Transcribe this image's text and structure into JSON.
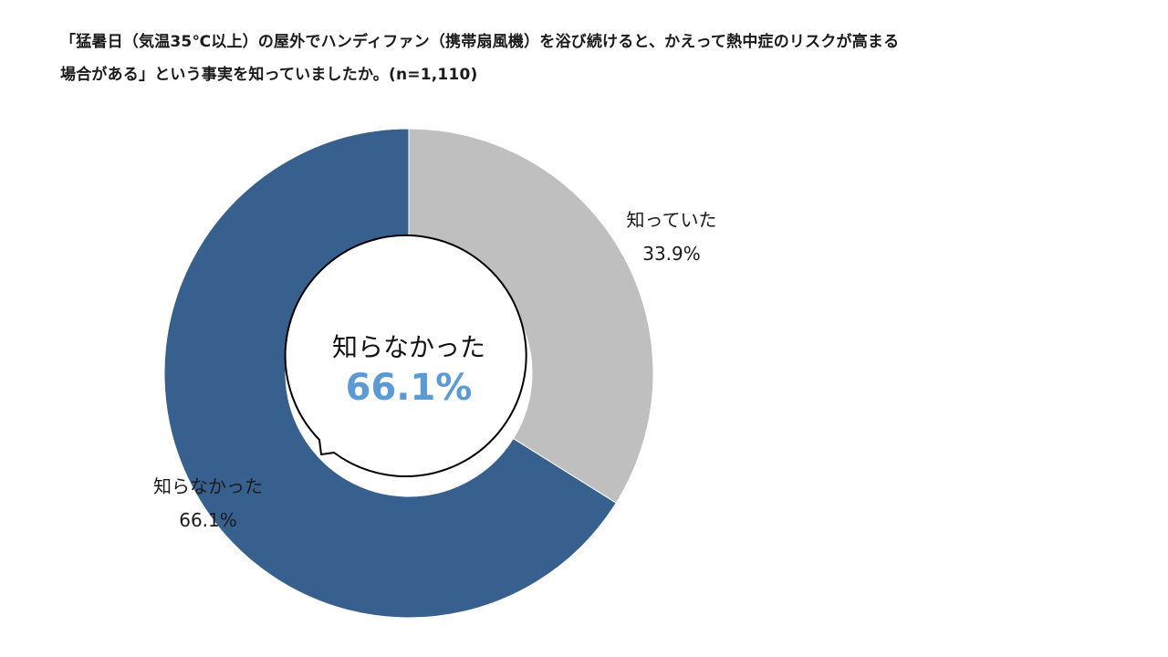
{
  "chart_data": {
    "type": "pie",
    "title_lines": [
      "「猛暑日（気温35℃以上）の屋外でハンディファン（携帯扇風機）を浴び続けると、かえって熱中症のリスクが高まる",
      "場合がある」という事実を知っていましたか。(n=1,110)"
    ],
    "slices": [
      {
        "label": "知っていた",
        "value": 33.9,
        "value_label": "33.9%",
        "color": "#bfbfbf"
      },
      {
        "label": "知らなかった",
        "value": 66.1,
        "value_label": "66.1%",
        "color": "#38608f"
      }
    ],
    "callout": {
      "label": "知らなかった",
      "value_label": "66.1%",
      "value_color": "#5b9bd5"
    }
  }
}
